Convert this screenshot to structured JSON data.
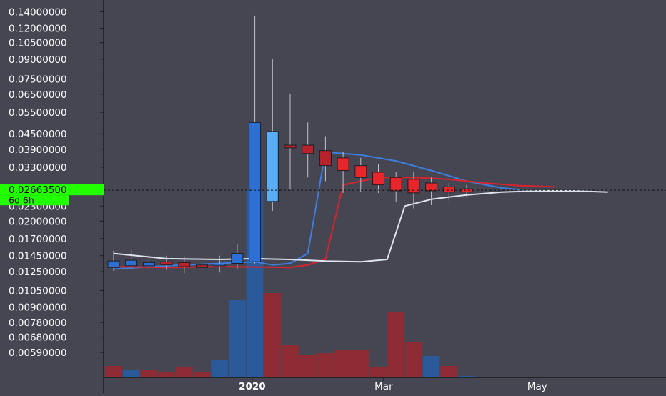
{
  "chart_data": {
    "type": "candlestick",
    "title": "",
    "y_scale": "log",
    "ylim": [
      0.005,
      0.15
    ],
    "y_ticks": [
      "0.14000000",
      "0.12000000",
      "0.10500000",
      "0.09000000",
      "0.07500000",
      "0.06500000",
      "0.05500000",
      "0.04500000",
      "0.03900000",
      "0.03300000",
      "0.02300000",
      "0.02000000",
      "0.01700000",
      "0.01450000",
      "0.01250000",
      "0.01050000",
      "0.00900000",
      "0.00780000",
      "0.00680000",
      "0.00590000"
    ],
    "x_ticks": [
      {
        "label": "2020",
        "bold": true,
        "index": 7.85
      },
      {
        "label": "Mar",
        "bold": false,
        "index": 15.3
      },
      {
        "label": "May",
        "bold": false,
        "index": 24.0
      }
    ],
    "current_price": {
      "value": 0.026635,
      "label": "0.02663500",
      "countdown": "6d 6h",
      "color": "#22ff00"
    },
    "candles": [
      {
        "o": 0.013,
        "h": 0.0152,
        "l": 0.0126,
        "c": 0.0138
      },
      {
        "o": 0.0132,
        "h": 0.0153,
        "l": 0.0128,
        "c": 0.0139
      },
      {
        "o": 0.0132,
        "h": 0.0146,
        "l": 0.0127,
        "c": 0.0136
      },
      {
        "o": 0.0137,
        "h": 0.0145,
        "l": 0.0127,
        "c": 0.0133
      },
      {
        "o": 0.0136,
        "h": 0.0144,
        "l": 0.0123,
        "c": 0.0131
      },
      {
        "o": 0.0133,
        "h": 0.0144,
        "l": 0.0121,
        "c": 0.013
      },
      {
        "o": 0.0132,
        "h": 0.0145,
        "l": 0.0124,
        "c": 0.0134
      },
      {
        "o": 0.0135,
        "h": 0.0162,
        "l": 0.0128,
        "c": 0.0148
      },
      {
        "o": 0.0137,
        "h": 0.135,
        "l": 0.0135,
        "c": 0.05
      },
      {
        "o": 0.024,
        "h": 0.09,
        "l": 0.022,
        "c": 0.046
      },
      {
        "o": 0.0405,
        "h": 0.065,
        "l": 0.027,
        "c": 0.0395
      },
      {
        "o": 0.0405,
        "h": 0.05,
        "l": 0.03,
        "c": 0.0375
      },
      {
        "o": 0.0385,
        "h": 0.044,
        "l": 0.029,
        "c": 0.0335
      },
      {
        "o": 0.036,
        "h": 0.038,
        "l": 0.026,
        "c": 0.032
      },
      {
        "o": 0.0335,
        "h": 0.036,
        "l": 0.0262,
        "c": 0.03
      },
      {
        "o": 0.0315,
        "h": 0.034,
        "l": 0.026,
        "c": 0.028
      },
      {
        "o": 0.03,
        "h": 0.0315,
        "l": 0.024,
        "c": 0.0265
      },
      {
        "o": 0.0295,
        "h": 0.0315,
        "l": 0.0225,
        "c": 0.026
      },
      {
        "o": 0.0285,
        "h": 0.03,
        "l": 0.0232,
        "c": 0.0265
      },
      {
        "o": 0.0275,
        "h": 0.0285,
        "l": 0.0242,
        "c": 0.0262
      },
      {
        "o": 0.027,
        "h": 0.028,
        "l": 0.025,
        "c": 0.0262
      }
    ],
    "lines": [
      {
        "color": "#3d7fe0",
        "points": [
          [
            0,
            0.0128
          ],
          [
            3,
            0.0132
          ],
          [
            6,
            0.0135
          ],
          [
            8,
            0.0137
          ],
          [
            9,
            0.0133
          ],
          [
            10,
            0.0135
          ],
          [
            11,
            0.0148
          ],
          [
            12,
            0.038
          ],
          [
            14,
            0.037
          ],
          [
            16,
            0.035
          ],
          [
            18,
            0.032
          ],
          [
            20,
            0.029
          ],
          [
            22,
            0.0272
          ],
          [
            23,
            0.0268
          ]
        ]
      },
      {
        "color": "#d9242f",
        "points": [
          [
            0,
            0.0131
          ],
          [
            3,
            0.013
          ],
          [
            6,
            0.0131
          ],
          [
            10,
            0.013
          ],
          [
            11,
            0.0133
          ],
          [
            12,
            0.014
          ],
          [
            13,
            0.028
          ],
          [
            15,
            0.03
          ],
          [
            17,
            0.03
          ],
          [
            19,
            0.0295
          ],
          [
            21,
            0.0285
          ],
          [
            23,
            0.0278
          ],
          [
            25,
            0.0275
          ]
        ]
      },
      {
        "color": "#dde4ee",
        "points": [
          [
            0,
            0.0148
          ],
          [
            3,
            0.0141
          ],
          [
            6,
            0.014
          ],
          [
            8,
            0.0141
          ],
          [
            10,
            0.014
          ],
          [
            12,
            0.0138
          ],
          [
            14,
            0.0137
          ],
          [
            15.5,
            0.014
          ],
          [
            16.5,
            0.023
          ],
          [
            18,
            0.0245
          ],
          [
            20,
            0.0255
          ],
          [
            22,
            0.0262
          ],
          [
            24,
            0.0265
          ],
          [
            26,
            0.0265
          ],
          [
            28,
            0.0262
          ]
        ]
      }
    ],
    "volume": [
      {
        "v": 0.04,
        "dir": "down"
      },
      {
        "v": 0.025,
        "dir": "up"
      },
      {
        "v": 0.025,
        "dir": "down"
      },
      {
        "v": 0.02,
        "dir": "down"
      },
      {
        "v": 0.035,
        "dir": "down"
      },
      {
        "v": 0.02,
        "dir": "down"
      },
      {
        "v": 0.06,
        "dir": "up"
      },
      {
        "v": 0.27,
        "dir": "up"
      },
      {
        "v": 0.655,
        "dir": "up"
      },
      {
        "v": 0.295,
        "dir": "down"
      },
      {
        "v": 0.115,
        "dir": "down"
      },
      {
        "v": 0.08,
        "dir": "down"
      },
      {
        "v": 0.085,
        "dir": "down"
      },
      {
        "v": 0.095,
        "dir": "down"
      },
      {
        "v": 0.095,
        "dir": "down"
      },
      {
        "v": 0.035,
        "dir": "down"
      },
      {
        "v": 0.23,
        "dir": "down"
      },
      {
        "v": 0.125,
        "dir": "down"
      },
      {
        "v": 0.075,
        "dir": "up"
      },
      {
        "v": 0.04,
        "dir": "down"
      },
      {
        "v": 0.005,
        "dir": "up"
      }
    ],
    "colors": {
      "background": "#454652",
      "axis": "#1a1a1a",
      "up_body": "#2d6fd2",
      "up_body_light": "#58adf4",
      "down_body": "#b8222a",
      "down_body_light": "#e8252b",
      "wick": "#c0c2c8",
      "up_volume": "#2b5a9a",
      "down_volume": "#8f2b35",
      "tick_text": "#ffffff"
    }
  }
}
